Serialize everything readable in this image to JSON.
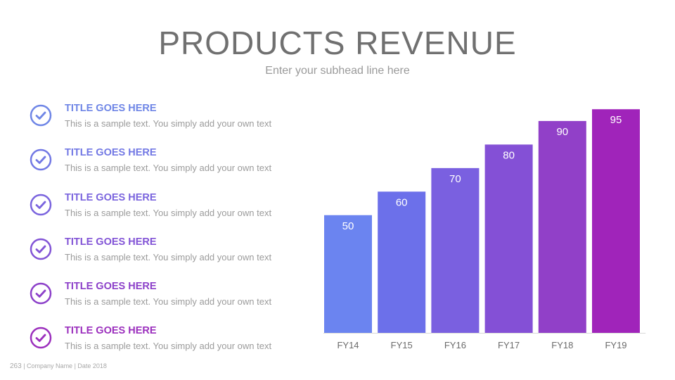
{
  "header": {
    "title": "PRODUCTS REVENUE",
    "subtitle": "Enter your subhead line here"
  },
  "items": [
    {
      "title": "TITLE GOES HERE",
      "text": "This is a sample text. You simply add your own text",
      "color": "#6f86e6",
      "icon": "check-circle-icon"
    },
    {
      "title": "TITLE GOES HERE",
      "text": "This is a sample text. You simply add your own text",
      "color": "#7278e4",
      "icon": "check-circle-icon"
    },
    {
      "title": "TITLE GOES HERE",
      "text": "This is a sample text. You simply add your own text",
      "color": "#7a64de",
      "icon": "check-circle-icon"
    },
    {
      "title": "TITLE GOES HERE",
      "text": "This is a sample text. You simply add your own text",
      "color": "#8254d6",
      "icon": "check-circle-icon"
    },
    {
      "title": "TITLE GOES HERE",
      "text": "This is a sample text. You simply add your own text",
      "color": "#8c40c9",
      "icon": "check-circle-icon"
    },
    {
      "title": "TITLE GOES HERE",
      "text": "This is a sample text. You simply add your own text",
      "color": "#9b2fbd",
      "icon": "check-circle-icon"
    }
  ],
  "chart_data": {
    "type": "bar",
    "categories": [
      "FY14",
      "FY15",
      "FY16",
      "FY17",
      "FY18",
      "FY19"
    ],
    "values": [
      50,
      60,
      70,
      80,
      90,
      95
    ],
    "colors": [
      "#6b84f0",
      "#6c70ea",
      "#7a60e0",
      "#8450d6",
      "#9140c8",
      "#a024ba"
    ],
    "data_labels": [
      "50",
      "60",
      "70",
      "80",
      "90",
      "95"
    ],
    "ylim": [
      0,
      100
    ],
    "grid": false,
    "legend": "none"
  },
  "footer": {
    "page_number": "263",
    "text": "| Company Name | Date 2018"
  }
}
